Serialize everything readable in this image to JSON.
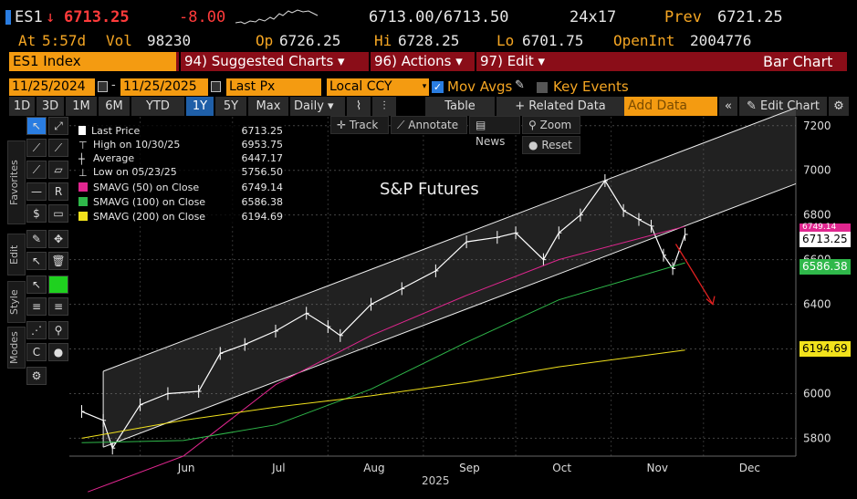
{
  "header": {
    "ticker": "ES1",
    "arrow": "↓",
    "price": "6713.25",
    "change": "-8.00",
    "bid_ask": "6713.00/6713.50",
    "size": "24x17",
    "prev_label": "Prev",
    "prev_value": "6721.25",
    "at_label": "At",
    "time": "5:57d",
    "vol_label": "Vol",
    "vol_value": "98230",
    "op_label": "Op",
    "op_value": "6726.25",
    "hi_label": "Hi",
    "hi_value": "6728.25",
    "lo_label": "Lo",
    "lo_value": "6701.75",
    "oi_label": "OpenInt",
    "oi_value": "2004776"
  },
  "menu": {
    "security": "ES1 Index",
    "suggested": "94) Suggested Charts",
    "actions": "96) Actions",
    "edit": "97) Edit",
    "chart_type": "Bar Chart"
  },
  "controls": {
    "start_date": "11/25/2024",
    "end_date": "11/25/2025",
    "field": "Last Px",
    "currency": "Local CCY",
    "mov_avgs": "Mov Avgs",
    "key_events": "Key Events"
  },
  "toolbar": {
    "periods": [
      "1D",
      "3D",
      "1M",
      "6M",
      "YTD",
      "1Y",
      "5Y",
      "Max"
    ],
    "selected_period": "1Y",
    "frequency": "Daily",
    "table": "Table",
    "related": "+ Related Data",
    "add_data_placeholder": "Add Data",
    "edit_chart": "Edit Chart"
  },
  "chart_controls": {
    "track": "Track",
    "annotate": "Annotate",
    "news": "News",
    "zoom": "Zoom",
    "reset": "Reset"
  },
  "side_tabs": [
    "Favorites",
    "Edit",
    "Style",
    "Modes"
  ],
  "legend": [
    {
      "label": "Last Price",
      "value": "6713.25",
      "color": "#ffffff"
    },
    {
      "label": "High on 10/30/25",
      "value": "6953.75",
      "color": ""
    },
    {
      "label": "Average",
      "value": "6447.17",
      "color": ""
    },
    {
      "label": "Low on 05/23/25",
      "value": "5756.50",
      "color": ""
    },
    {
      "label": "SMAVG (50)  on Close",
      "value": "6749.14",
      "color": "#e0268f"
    },
    {
      "label": "SMAVG (100)  on Close",
      "value": "6586.38",
      "color": "#2fb84a"
    },
    {
      "label": "SMAVG (200)  on Close",
      "value": "6194.69",
      "color": "#f2e21c"
    }
  ],
  "chart_data": {
    "type": "line",
    "title": "S&P Futures",
    "x_label": "2025",
    "x_ticks": [
      "Jun",
      "Jul",
      "Aug",
      "Sep",
      "Oct",
      "Nov",
      "Dec"
    ],
    "y_ticks": [
      5800,
      6000,
      6200,
      6400,
      6600,
      6800,
      7000,
      7200
    ],
    "ylim": [
      5720,
      7240
    ],
    "y_tags": [
      {
        "value": "6749.14",
        "color": "#e0268f"
      },
      {
        "value": "6713.25",
        "color": "#ffffff"
      },
      {
        "value": "6586.38",
        "color": "#2fb84a"
      },
      {
        "value": "6194.69",
        "color": "#f2e21c"
      }
    ],
    "series": [
      {
        "name": "Last Price",
        "color": "#ffffff",
        "x": [
          "2025-05-13",
          "2025-05-20",
          "2025-05-23",
          "2025-06-01",
          "2025-06-10",
          "2025-06-20",
          "2025-06-27",
          "2025-07-05",
          "2025-07-15",
          "2025-07-25",
          "2025-08-01",
          "2025-08-05",
          "2025-08-15",
          "2025-08-25",
          "2025-09-05",
          "2025-09-15",
          "2025-09-25",
          "2025-10-01",
          "2025-10-10",
          "2025-10-15",
          "2025-10-22",
          "2025-10-30",
          "2025-11-05",
          "2025-11-10",
          "2025-11-14",
          "2025-11-18",
          "2025-11-21",
          "2025-11-25"
        ],
        "values": [
          5920,
          5880,
          5756,
          5950,
          6000,
          6010,
          6180,
          6220,
          6280,
          6360,
          6300,
          6260,
          6400,
          6470,
          6550,
          6680,
          6700,
          6720,
          6600,
          6720,
          6800,
          6954,
          6820,
          6780,
          6750,
          6620,
          6560,
          6713
        ]
      },
      {
        "name": "SMAVG (50)",
        "color": "#e0268f",
        "x": [
          "2025-05-15",
          "2025-06-15",
          "2025-07-15",
          "2025-08-15",
          "2025-09-15",
          "2025-10-15",
          "2025-11-25"
        ],
        "values": [
          5560,
          5720,
          6040,
          6260,
          6440,
          6600,
          6749
        ]
      },
      {
        "name": "SMAVG (100)",
        "color": "#2fb84a",
        "x": [
          "2025-05-13",
          "2025-06-15",
          "2025-07-15",
          "2025-08-15",
          "2025-09-15",
          "2025-10-15",
          "2025-11-25"
        ],
        "values": [
          5780,
          5790,
          5860,
          6020,
          6230,
          6420,
          6586
        ]
      },
      {
        "name": "SMAVG (200)",
        "color": "#f2e21c",
        "x": [
          "2025-05-13",
          "2025-06-15",
          "2025-07-15",
          "2025-08-15",
          "2025-09-15",
          "2025-10-15",
          "2025-11-25"
        ],
        "values": [
          5800,
          5880,
          5940,
          5990,
          6050,
          6120,
          6195
        ]
      }
    ],
    "channel": {
      "upper": [
        [
          "2025-05-20",
          6100
        ],
        [
          "2025-12-31",
          7280
        ]
      ],
      "lower": [
        [
          "2025-05-20",
          5760
        ],
        [
          "2025-12-31",
          6940
        ]
      ]
    },
    "grid": true
  }
}
